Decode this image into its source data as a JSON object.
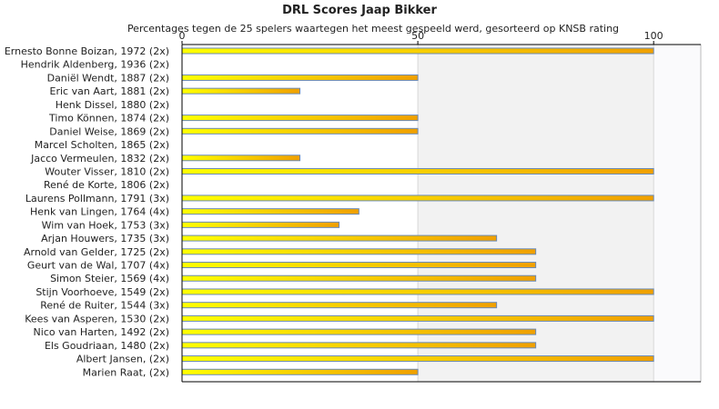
{
  "chart_data": {
    "type": "bar",
    "orientation": "horizontal",
    "title": "DRL Scores Jaap Bikker",
    "subtitle": "Percentages tegen de 25 spelers waartegen het meest gespeeld werd, gesorteerd op KNSB rating",
    "xlim": [
      0,
      110
    ],
    "xticks": [
      "0",
      "50",
      "100"
    ],
    "grid": true,
    "categories": [
      "Ernesto Bonne Boizan, 1972 (2x)",
      "Hendrik Aldenberg, 1936 (2x)",
      "Daniël Wendt, 1887 (2x)",
      "Eric van Aart, 1881 (2x)",
      "Henk Dissel, 1880 (2x)",
      "Timo Können, 1874 (2x)",
      "Daniel Weise, 1869 (2x)",
      "Marcel Scholten, 1865 (2x)",
      "Jacco Vermeulen, 1832 (2x)",
      "Wouter Visser, 1810 (2x)",
      "René de Korte, 1806 (2x)",
      "Laurens Pollmann, 1791 (3x)",
      "Henk van Lingen, 1764 (4x)",
      "Wim van Hoek, 1753 (3x)",
      "Arjan Houwers, 1735 (3x)",
      "Arnold van Gelder, 1725 (2x)",
      "Geurt van de Wal, 1707 (4x)",
      "Simon Steier, 1569 (4x)",
      "Stijn Voorhoeve, 1549 (2x)",
      "René de Ruiter, 1544 (3x)",
      "Kees van Asperen, 1530 (2x)",
      "Nico van Harten, 1492 (2x)",
      "Els Goudriaan, 1480 (2x)",
      "Albert Jansen,  (2x)",
      "Marien Raat,  (2x)"
    ],
    "values": [
      100,
      0,
      50,
      25,
      0,
      50,
      50,
      0,
      25,
      100,
      0,
      100,
      37.5,
      33.3,
      66.7,
      75,
      75,
      75,
      100,
      66.7,
      100,
      75,
      75,
      100,
      50
    ],
    "colors": {
      "bar_left": "#ffff00",
      "bar_right": "#f0a000",
      "bar_border": "#6a8ab8",
      "band_light": "#ffffff",
      "band_dark": "#f2f2f2",
      "axis": "#000000",
      "grid": "#d8d8d8"
    }
  }
}
